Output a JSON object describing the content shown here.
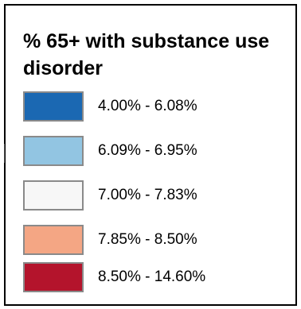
{
  "legend": {
    "title": "% 65+ with substance use disorder",
    "items": [
      {
        "label": "4.00% - 6.08%",
        "color": "#1b68b2"
      },
      {
        "label": "6.09% - 6.95%",
        "color": "#92c5e2"
      },
      {
        "label": "7.00% - 7.83%",
        "color": "#f7f7f7"
      },
      {
        "label": "7.85% - 8.50%",
        "color": "#f4a684"
      },
      {
        "label": "8.50% - 14.60%",
        "color": "#b4142c"
      }
    ]
  }
}
